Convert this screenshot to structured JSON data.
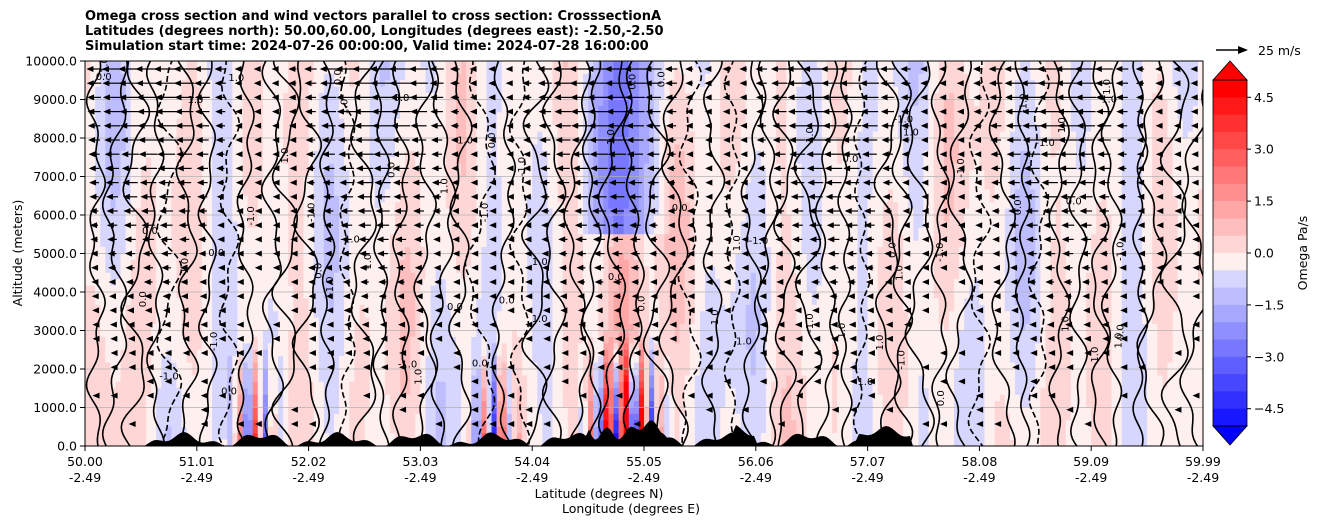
{
  "title_lines": [
    "Omega cross section and wind vectors parallel to cross section: CrosssectionA",
    "Latitudes (degrees north): 50.00,60.00, Longitudes (degrees east): -2.50,-2.50",
    "Simulation start time: 2024-07-26 00:00:00, Valid time: 2024-07-28 16:00:00"
  ],
  "colors": {
    "negative_max": "#0000ff",
    "positive_max": "#ff0000",
    "zero": "#ffffff",
    "contour": "#000000",
    "terrain": "#000000",
    "grid": "#b0b0b0"
  },
  "chart_data": {
    "type": "heatmap",
    "subtype": "filled contour cross section with wind vectors",
    "ylabel": "Altitude (meters)",
    "xlabel_lines": [
      "Latitude (degrees N)",
      "Longitude (degrees E)"
    ],
    "ylim": [
      0,
      10000
    ],
    "y_ticks": [
      "0.0",
      "1000.0",
      "2000.0",
      "3000.0",
      "4000.0",
      "5000.0",
      "6000.0",
      "7000.0",
      "8000.0",
      "9000.0",
      "10000.0"
    ],
    "x_ticks": [
      {
        "lat": "50.00",
        "lon": "-2.49"
      },
      {
        "lat": "51.01",
        "lon": "-2.49"
      },
      {
        "lat": "52.02",
        "lon": "-2.49"
      },
      {
        "lat": "53.03",
        "lon": "-2.49"
      },
      {
        "lat": "54.04",
        "lon": "-2.49"
      },
      {
        "lat": "55.05",
        "lon": "-2.49"
      },
      {
        "lat": "56.06",
        "lon": "-2.49"
      },
      {
        "lat": "57.07",
        "lon": "-2.49"
      },
      {
        "lat": "58.08",
        "lon": "-2.49"
      },
      {
        "lat": "59.09",
        "lon": "-2.49"
      },
      {
        "lat": "59.99",
        "lon": "-2.49"
      }
    ],
    "xlim": [
      50.0,
      59.99
    ],
    "grid": "horizontal",
    "colorbar": {
      "label": "Omega Pa/s",
      "range": [
        -5.0,
        5.0
      ],
      "extend": "both",
      "tick_labels": [
        "4.5",
        "3.0",
        "1.5",
        "0.0",
        "−1.5",
        "−3.0",
        "−4.5"
      ],
      "tick_values": [
        4.5,
        3.0,
        1.5,
        0.0,
        -1.5,
        -3.0,
        -4.5
      ]
    },
    "contour_labels": [
      "0.0",
      "1.0",
      "-1.0"
    ],
    "quiver_key": {
      "label": "25 m/s",
      "value": 25,
      "position": "top-right"
    }
  }
}
